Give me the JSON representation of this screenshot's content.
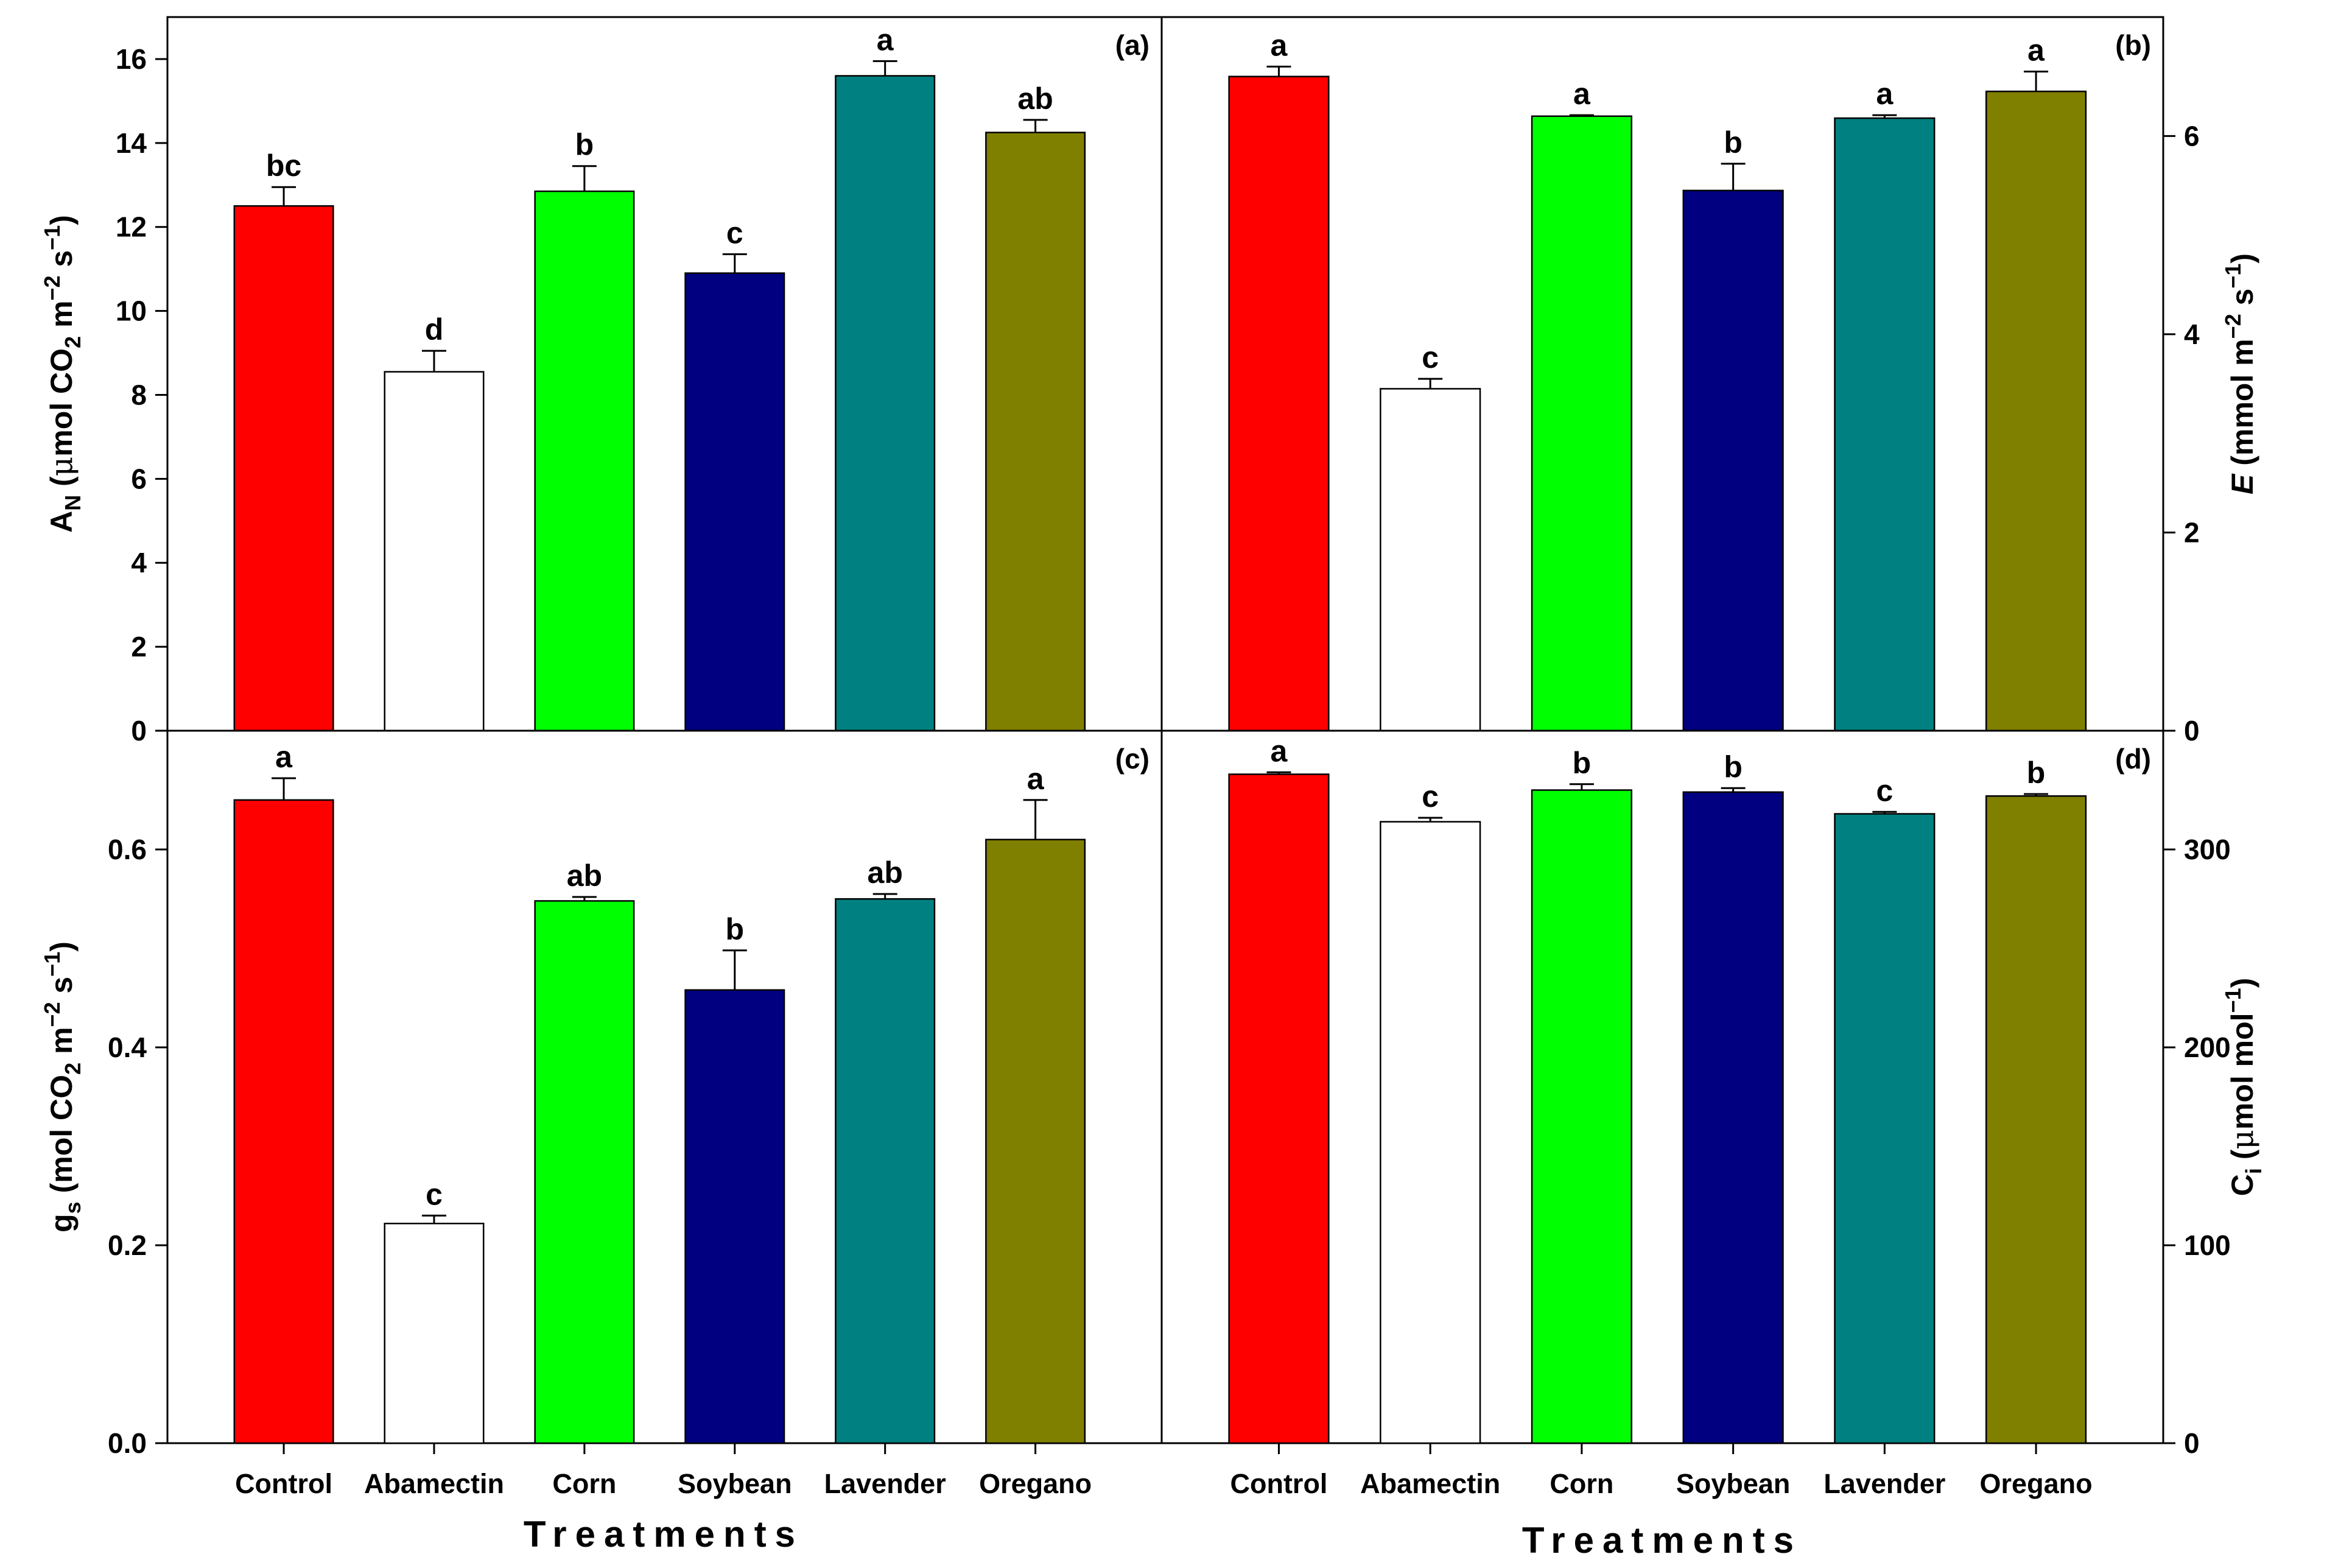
{
  "chart_data": [
    {
      "type": "bar",
      "panel_label": "(a)",
      "ylabel": "A_N (μmol CO2 m−2 s−1)",
      "ylabel_parts": [
        "A",
        "N",
        " (",
        "μ",
        "mol CO",
        "2",
        " m",
        "−2",
        " s",
        "−1",
        ")"
      ],
      "ylim": [
        0,
        17
      ],
      "yticks": [
        "0",
        "2",
        "4",
        "6",
        "8",
        "10",
        "12",
        "14",
        "16"
      ],
      "ytick_values": [
        0,
        2,
        4,
        6,
        8,
        10,
        12,
        14,
        16
      ],
      "categories": [
        "Control",
        "Abamectin",
        "Corn",
        "Soybean",
        "Lavender",
        "Oregano"
      ],
      "values": [
        12.5,
        8.55,
        12.85,
        10.9,
        15.6,
        14.25
      ],
      "errors": [
        0.45,
        0.5,
        0.6,
        0.45,
        0.35,
        0.3
      ],
      "letters": [
        "bc",
        "d",
        "b",
        "c",
        "a",
        "ab"
      ]
    },
    {
      "type": "bar",
      "panel_label": "(b)",
      "ylabel": "E (mmol m−2 s−1)",
      "ylabel_parts": [
        "E",
        " (mmol m",
        "−2",
        " s",
        "−1",
        ")"
      ],
      "ylim": [
        0,
        7.2
      ],
      "yticks": [
        "0",
        "2",
        "4",
        "6"
      ],
      "ytick_values": [
        0,
        2,
        4,
        6
      ],
      "categories": [
        "Control",
        "Abamectin",
        "Corn",
        "Soybean",
        "Lavender",
        "Oregano"
      ],
      "values": [
        6.6,
        3.45,
        6.2,
        5.45,
        6.18,
        6.45
      ],
      "errors": [
        0.1,
        0.1,
        0.01,
        0.27,
        0.03,
        0.2
      ],
      "letters": [
        "a",
        "c",
        "a",
        "b",
        "a",
        "a"
      ]
    },
    {
      "type": "bar",
      "panel_label": "(c)",
      "ylabel": "g_s (mol CO2 m−2 s−1)",
      "ylabel_parts": [
        "g",
        "s",
        " (mol CO",
        "2",
        " m",
        "−2",
        " s",
        "−1",
        ")"
      ],
      "ylim": [
        0,
        0.72
      ],
      "yticks": [
        "0.0",
        "0.2",
        "0.4",
        "0.6"
      ],
      "ytick_values": [
        0,
        0.2,
        0.4,
        0.6
      ],
      "categories": [
        "Control",
        "Abamectin",
        "Corn",
        "Soybean",
        "Lavender",
        "Oregano"
      ],
      "values": [
        0.65,
        0.222,
        0.548,
        0.458,
        0.55,
        0.61
      ],
      "errors": [
        0.022,
        0.008,
        0.004,
        0.04,
        0.005,
        0.04
      ],
      "letters": [
        "a",
        "c",
        "ab",
        "b",
        "ab",
        "a"
      ]
    },
    {
      "type": "bar",
      "panel_label": "(d)",
      "ylabel": "C_i (μmol mol−1)",
      "ylabel_parts": [
        "C",
        "i",
        " (",
        "μ",
        "mol mol",
        "−1",
        ")"
      ],
      "ylim": [
        0,
        360
      ],
      "yticks": [
        "0",
        "100",
        "200",
        "300"
      ],
      "ytick_values": [
        0,
        100,
        200,
        300
      ],
      "categories": [
        "Control",
        "Abamectin",
        "Corn",
        "Soybean",
        "Lavender",
        "Oregano"
      ],
      "values": [
        338,
        314,
        330,
        329,
        318,
        327
      ],
      "errors": [
        1,
        2,
        3,
        2,
        1,
        1
      ],
      "letters": [
        "a",
        "c",
        "b",
        "b",
        "c",
        "b"
      ]
    }
  ],
  "colors": [
    "#ff0000",
    "#ffffff",
    "#00ff00",
    "#000080",
    "#008080",
    "#808000"
  ],
  "xlabel": "Treatments"
}
